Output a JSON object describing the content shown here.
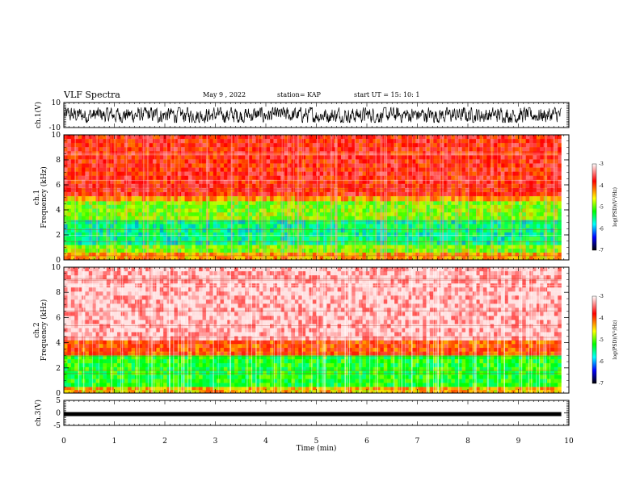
{
  "header": {
    "title": "VLF Spectra",
    "date": "May 9  , 2022",
    "station": "station= KAP",
    "start": "start  UT  =   15: 10: 1"
  },
  "chart_data": [
    {
      "type": "line",
      "panel": "ch1-waveform",
      "ylabel": "ch.1(V)",
      "ylim": [
        -10,
        10
      ],
      "xlim": [
        0,
        10
      ],
      "yticks": [
        "10",
        "-10"
      ],
      "series": [
        {
          "style": "dense noisy waveform",
          "range": [
            -6,
            6
          ]
        }
      ]
    },
    {
      "type": "heatmap",
      "panel": "ch1-spectrogram",
      "ylabel": "ch.1\nFrequency  (kHz)",
      "ylim": [
        0,
        10
      ],
      "xlim": [
        0,
        9.85
      ],
      "yticks": [
        "0",
        "2",
        "4",
        "6",
        "8",
        "10"
      ],
      "bands_khz": [
        {
          "from": 0.0,
          "to": 0.6,
          "level": -4.3
        },
        {
          "from": 0.6,
          "to": 1.2,
          "level": -4.9
        },
        {
          "from": 1.2,
          "to": 3.2,
          "level": -5.5
        },
        {
          "from": 3.2,
          "to": 4.7,
          "level": -4.9
        },
        {
          "from": 4.7,
          "to": 5.1,
          "level": -4.3
        },
        {
          "from": 5.1,
          "to": 10.0,
          "level": -3.8
        }
      ],
      "colorbar": {
        "label": "log(PSD)(V²/Hz)",
        "range": [
          -7,
          -3
        ],
        "ticks": [
          "-3",
          "-4",
          "-5",
          "-6",
          "-7"
        ]
      }
    },
    {
      "type": "heatmap",
      "panel": "ch2-spectrogram",
      "ylabel": "ch.2\nFrequency  (kHz)",
      "ylim": [
        0,
        10
      ],
      "xlim": [
        0,
        9.85
      ],
      "yticks": [
        "0",
        "2",
        "4",
        "6",
        "8",
        "10"
      ],
      "bands_khz": [
        {
          "from": 0.0,
          "to": 0.5,
          "level": -4.4
        },
        {
          "from": 0.5,
          "to": 3.0,
          "level": -5.2
        },
        {
          "from": 3.0,
          "to": 4.2,
          "level": -4.0
        },
        {
          "from": 4.2,
          "to": 10.0,
          "level": -3.2
        }
      ],
      "colorbar": {
        "label": "log(PSD)(V²/Hz)",
        "range": [
          -7,
          -3
        ],
        "ticks": [
          "-3",
          "-4",
          "-5",
          "-6",
          "-7"
        ]
      }
    },
    {
      "type": "line",
      "panel": "ch3-waveform",
      "ylabel": "ch.3(V)",
      "ylim": [
        -5,
        5
      ],
      "xlim": [
        0,
        10
      ],
      "yticks": [
        "5",
        "0",
        "-5"
      ],
      "series": [
        {
          "style": "thick flat trace",
          "value": -0.5
        }
      ]
    }
  ],
  "xaxis": {
    "label": "Time  (min)",
    "ticks": [
      "0",
      "1",
      "2",
      "3",
      "4",
      "5",
      "6",
      "7",
      "8",
      "9",
      "10"
    ],
    "range": [
      0,
      10
    ]
  },
  "colors": {
    "scale": [
      "#000000",
      "#0000ff",
      "#00ffff",
      "#00ff00",
      "#ffff00",
      "#ff0000",
      "#ffffff"
    ]
  }
}
